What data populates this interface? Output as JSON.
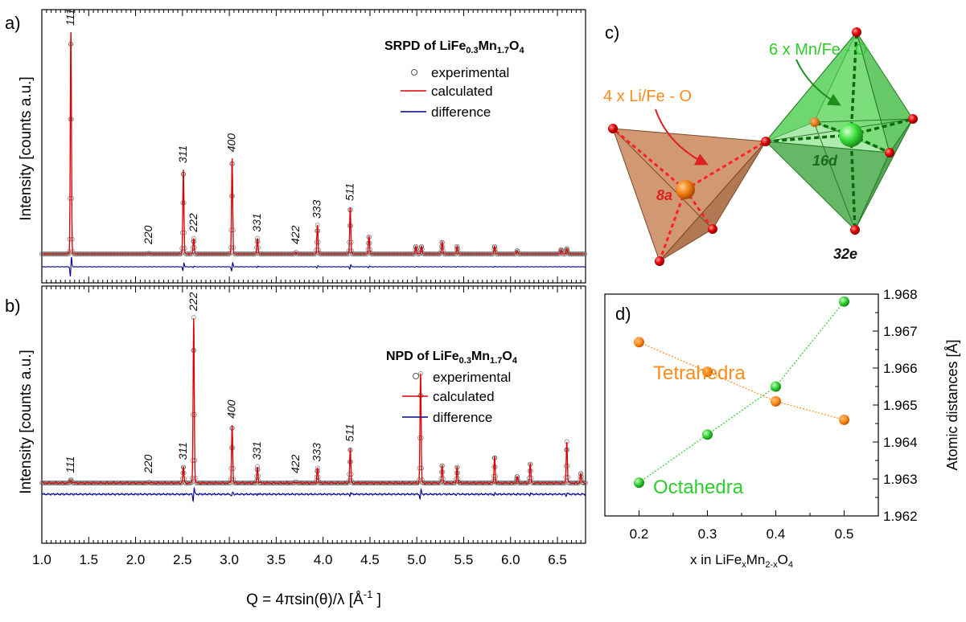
{
  "panel_a": {
    "letter": "a)",
    "title_prefix": "SRPD of LiFe",
    "title_sub1": "0.3",
    "title_mid": "Mn",
    "title_sub2": "1.7",
    "title_o": "O",
    "title_sub3": "4",
    "ylabel": "Intensity [counts a.u.]",
    "legend": [
      "experimental",
      "calculated",
      "difference"
    ],
    "peak_labels": [
      "111",
      "311",
      "400",
      "222",
      "220",
      "331",
      "422",
      "333",
      "511"
    ]
  },
  "panel_b": {
    "letter": "b)",
    "title_prefix": "NPD of LiFe",
    "title_sub1": "0.3",
    "title_mid": "Mn",
    "title_sub2": "1.7",
    "title_o": "O",
    "title_sub3": "4",
    "ylabel": "Intensity [counts a.u.]",
    "legend": [
      "experimental",
      "calculated",
      "difference"
    ],
    "peak_labels": [
      "111",
      "220",
      "311",
      "222",
      "400",
      "331",
      "422",
      "333",
      "511"
    ],
    "xlabel": "Q = 4πsin(θ)/λ [Å",
    "xlabel_sup": "-1",
    "xlabel_end": " ]",
    "xticks": [
      "1.0",
      "1.5",
      "2.0",
      "2.5",
      "3.0",
      "3.5",
      "4.0",
      "4.5",
      "5.0",
      "5.5",
      "6.0",
      "6.5"
    ]
  },
  "panel_c": {
    "letter": "c)",
    "label_oct": "6 x Mn/Fe - O",
    "label_tet": "4 x Li/Fe - O",
    "site_16d": "16d",
    "site_8a": "8a",
    "site_32e": "32e"
  },
  "chart_data": [
    {
      "type": "line",
      "panel": "a",
      "title": "SRPD of LiFe0.3Mn1.7O4",
      "xlabel": "Q = 4πsin(θ)/λ [Å-1 ]",
      "ylabel": "Intensity [counts a.u.]",
      "xlim": [
        1.0,
        6.8
      ],
      "series": [
        {
          "name": "experimental"
        },
        {
          "name": "calculated"
        },
        {
          "name": "difference"
        }
      ],
      "peaks": [
        {
          "q": 1.31,
          "hkl": "111",
          "intensity": 1.0
        },
        {
          "q": 2.14,
          "hkl": "220",
          "intensity": 0.004
        },
        {
          "q": 2.51,
          "hkl": "311",
          "intensity": 0.38
        },
        {
          "q": 2.62,
          "hkl": "222",
          "intensity": 0.07
        },
        {
          "q": 3.03,
          "hkl": "400",
          "intensity": 0.43
        },
        {
          "q": 3.3,
          "hkl": "331",
          "intensity": 0.07
        },
        {
          "q": 3.71,
          "hkl": "422",
          "intensity": 0.008
        },
        {
          "q": 3.94,
          "hkl": "333",
          "intensity": 0.13
        },
        {
          "q": 4.29,
          "hkl": "511",
          "intensity": 0.21
        },
        {
          "q": 4.49,
          "intensity": 0.08
        },
        {
          "q": 4.99,
          "intensity": 0.035
        },
        {
          "q": 5.05,
          "intensity": 0.035
        },
        {
          "q": 5.27,
          "intensity": 0.055
        },
        {
          "q": 5.43,
          "intensity": 0.035
        },
        {
          "q": 5.83,
          "intensity": 0.035
        },
        {
          "q": 6.07,
          "intensity": 0.015
        },
        {
          "q": 6.54,
          "intensity": 0.02
        },
        {
          "q": 6.6,
          "intensity": 0.025
        }
      ]
    },
    {
      "type": "line",
      "panel": "b",
      "title": "NPD of LiFe0.3Mn1.7O4",
      "xlabel": "Q = 4πsin(θ)/λ [Å-1 ]",
      "ylabel": "Intensity [counts a.u.]",
      "xlim": [
        1.0,
        6.8
      ],
      "series": [
        {
          "name": "experimental"
        },
        {
          "name": "calculated"
        },
        {
          "name": "difference"
        }
      ],
      "peaks": [
        {
          "q": 1.31,
          "hkl": "111",
          "intensity": 0.02
        },
        {
          "q": 2.14,
          "hkl": "220",
          "intensity": 0.005
        },
        {
          "q": 2.51,
          "hkl": "311",
          "intensity": 0.1
        },
        {
          "q": 2.62,
          "hkl": "222",
          "intensity": 1.0
        },
        {
          "q": 3.03,
          "hkl": "400",
          "intensity": 0.35
        },
        {
          "q": 3.3,
          "hkl": "331",
          "intensity": 0.1
        },
        {
          "q": 3.71,
          "hkl": "422",
          "intensity": 0.01
        },
        {
          "q": 3.94,
          "hkl": "333",
          "intensity": 0.09
        },
        {
          "q": 4.29,
          "hkl": "511",
          "intensity": 0.21
        },
        {
          "q": 5.04,
          "intensity": 0.66
        },
        {
          "q": 5.27,
          "intensity": 0.11
        },
        {
          "q": 5.43,
          "intensity": 0.1
        },
        {
          "q": 5.83,
          "intensity": 0.16
        },
        {
          "q": 6.07,
          "intensity": 0.04
        },
        {
          "q": 6.21,
          "intensity": 0.12
        },
        {
          "q": 6.6,
          "intensity": 0.25
        },
        {
          "q": 6.75,
          "intensity": 0.06
        }
      ]
    },
    {
      "type": "scatter",
      "panel": "d",
      "letter": "d)",
      "xlabel": "x in LiFe",
      "xlabel_sub1": "x",
      "xlabel_mid": "Mn",
      "xlabel_sub2": "2-x",
      "xlabel_o": "O",
      "xlabel_sub3": "4",
      "ylabel": "Atomic distances [Å]",
      "xlim": [
        0.15,
        0.55
      ],
      "ylim": [
        1.962,
        1.968
      ],
      "xticks": [
        "0.2",
        "0.3",
        "0.4",
        "0.5"
      ],
      "yticks": [
        "1.962",
        "1.963",
        "1.964",
        "1.965",
        "1.966",
        "1.967",
        "1.968"
      ],
      "series": [
        {
          "name": "Tetrahedra",
          "color": "#ff8c1a",
          "x": [
            0.2,
            0.3,
            0.4,
            0.5
          ],
          "y": [
            1.9667,
            1.9659,
            1.9651,
            1.9646
          ]
        },
        {
          "name": "Octahedra",
          "color": "#2ecc2e",
          "x": [
            0.2,
            0.3,
            0.4,
            0.5
          ],
          "y": [
            1.9629,
            1.9642,
            1.9655,
            1.9678
          ]
        }
      ]
    }
  ]
}
